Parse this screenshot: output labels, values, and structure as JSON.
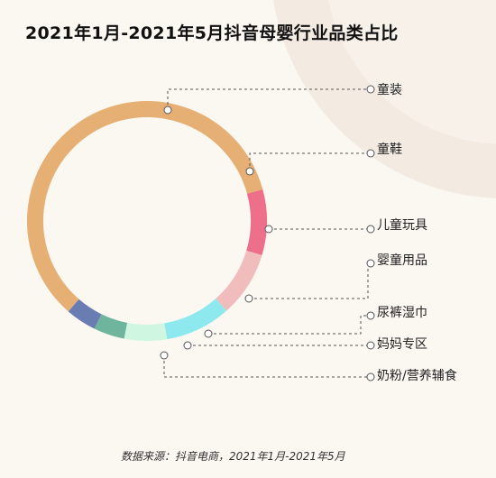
{
  "chart_data": {
    "type": "pie",
    "style": "donut",
    "title": "2021年1月-2021年5月抖音母婴行业品类占比",
    "categories": [
      "童装",
      "童鞋",
      "儿童玩具",
      "婴童用品",
      "尿裤湿巾",
      "妈妈专区",
      "奶粉/营养辅食"
    ],
    "values": [
      57.0,
      8.5,
      8.5,
      8.5,
      5.5,
      4.0,
      4.0
    ],
    "colors": [
      "#e6b074",
      "#ee6f8a",
      "#f1bcbc",
      "#8ee9ef",
      "#cff6e0",
      "#6fb59e",
      "#6a7db3"
    ],
    "unit": "%",
    "legend": "labels with dashed leader lines on the right"
  },
  "source_note": "数据来源：抖音电商，2021年1月-2021年5月"
}
